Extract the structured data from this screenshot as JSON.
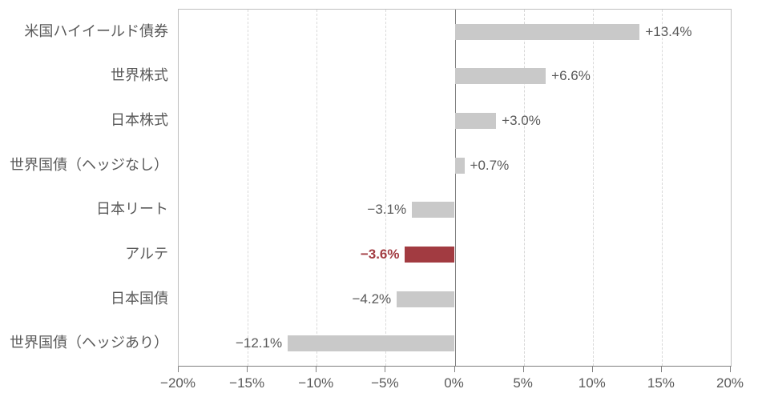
{
  "page": {
    "background": "#ffffff"
  },
  "chart_data": {
    "type": "bar",
    "orientation": "horizontal",
    "title": "",
    "xlabel": "",
    "ylabel": "",
    "categories": [
      "米国ハイイールド債券",
      "世界株式",
      "日本株式",
      "世界国債（ヘッジなし）",
      "日本リート",
      "アルテ",
      "日本国債",
      "世界国債（ヘッジあり）"
    ],
    "values": [
      13.4,
      6.6,
      3.0,
      0.7,
      -3.1,
      -3.6,
      -4.2,
      -12.1
    ],
    "data_labels": [
      "+13.4%",
      "+6.6%",
      "+3.0%",
      "+0.7%",
      "−3.1%",
      "−3.6%",
      "−4.2%",
      "−12.1%"
    ],
    "highlight_index": 5,
    "xlim": [
      -20,
      20
    ],
    "x_ticks": [
      -20,
      -15,
      -10,
      -5,
      0,
      5,
      10,
      15,
      20
    ],
    "x_tick_labels": [
      "−20%",
      "−15%",
      "−10%",
      "−5%",
      "0%",
      "5%",
      "10%",
      "15%",
      "20%"
    ],
    "grid": "vertical-dashed",
    "legend": "none",
    "colors": {
      "bar": "#c9c9c9",
      "highlight_bar": "#a23b41",
      "value_label": "#595959",
      "highlight_value_label": "#a23b41",
      "category_label": "#595959",
      "tick_label": "#595959",
      "axis_line": "#808080",
      "plot_border": "#bfbfbf",
      "gridline": "#d9d9d9"
    }
  }
}
